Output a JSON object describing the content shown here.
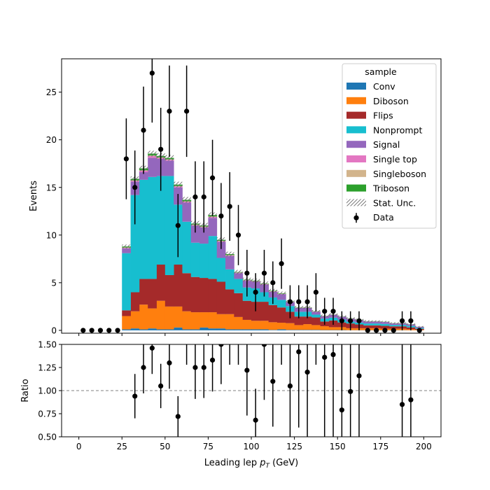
{
  "chart_data": {
    "type": "bar",
    "stacked": true,
    "bin_edges": [
      0,
      5,
      10,
      15,
      20,
      25,
      30,
      35,
      40,
      45,
      50,
      55,
      60,
      65,
      70,
      75,
      80,
      85,
      90,
      95,
      100,
      105,
      110,
      115,
      120,
      125,
      130,
      135,
      140,
      145,
      150,
      155,
      160,
      165,
      170,
      175,
      180,
      185,
      190,
      195,
      200
    ],
    "xlabel": "Leading lep",
    "xlabel_sub": "T",
    "xlabel_unit": " (GeV)",
    "xlabel_sym": "p",
    "ylabel": "Events",
    "ratio_ylabel": "Ratio",
    "xlim": [
      -10,
      210
    ],
    "ylim": [
      -0.3,
      28.5
    ],
    "ratio_ylim": [
      0.5,
      1.5
    ],
    "xticks": [
      0,
      25,
      50,
      75,
      100,
      125,
      150,
      175,
      200
    ],
    "yticks": [
      0,
      5,
      10,
      15,
      20,
      25
    ],
    "ratio_yticks": [
      "0.50",
      "0.75",
      "1.00",
      "1.25",
      "1.50"
    ],
    "legend": {
      "title": "sample",
      "placement": "top-right",
      "unc_label": "Stat. Unc.",
      "data_label": "Data"
    },
    "series": [
      {
        "name": "Conv",
        "color": "#1f77b4",
        "values": [
          0,
          0,
          0,
          0,
          0,
          0.1,
          0.2,
          0.1,
          0.2,
          0.1,
          0.1,
          0.3,
          0.1,
          0.1,
          0.3,
          0.2,
          0.2,
          0.1,
          0.1,
          0.1,
          0.1,
          0.1,
          0.05,
          0.1,
          0.05,
          0.05,
          0.05,
          0.05,
          0.03,
          0.03,
          0.03,
          0.02,
          0.02,
          0.02,
          0.02,
          0.02,
          0.02,
          0.02,
          0.01,
          0.01
        ]
      },
      {
        "name": "Diboson",
        "color": "#ff7f0e",
        "values": [
          0,
          0,
          0,
          0,
          0,
          1.4,
          1.8,
          2.6,
          2.1,
          3.0,
          2.4,
          2.2,
          1.9,
          1.8,
          1.6,
          1.7,
          1.5,
          1.6,
          1.3,
          1.0,
          0.9,
          0.9,
          0.8,
          0.7,
          0.7,
          0.5,
          0.6,
          0.5,
          0.4,
          0.3,
          0.3,
          0.2,
          0.2,
          0.2,
          0.2,
          0.15,
          0.15,
          0.15,
          0.1,
          0.05
        ]
      },
      {
        "name": "Flips",
        "color": "#a52a2a",
        "values": [
          0,
          0,
          0,
          0,
          0,
          0.6,
          2.0,
          2.7,
          3.1,
          3.8,
          3.3,
          4.4,
          4.0,
          3.7,
          3.6,
          3.5,
          3.4,
          2.6,
          2.5,
          2.0,
          2.0,
          2.0,
          1.8,
          1.6,
          1.2,
          0.9,
          0.8,
          0.8,
          0.5,
          0.7,
          0.5,
          0.5,
          0.4,
          0.3,
          0.3,
          0.3,
          0.25,
          0.25,
          0.2,
          0.1
        ]
      },
      {
        "name": "Nonprompt",
        "color": "#17becf",
        "values": [
          0,
          0,
          0,
          0,
          0,
          6.0,
          10.2,
          10.4,
          10.7,
          9.3,
          10.4,
          6.3,
          5.4,
          3.6,
          3.6,
          4.5,
          2.5,
          2.1,
          1.5,
          1.4,
          1.4,
          1.0,
          0.8,
          0.8,
          0.6,
          0.5,
          0.5,
          0.3,
          0.3,
          0.3,
          0.3,
          0.2,
          0.2,
          0.2,
          0.2,
          0.2,
          0.15,
          0.15,
          0.15,
          0.1
        ]
      },
      {
        "name": "Signal",
        "color": "#9467bd",
        "values": [
          0,
          0,
          0,
          0,
          0,
          0.5,
          1.4,
          0.8,
          2.0,
          1.8,
          1.6,
          1.8,
          2.0,
          1.8,
          1.7,
          1.9,
          1.7,
          1.4,
          0.6,
          0.7,
          0.7,
          0.8,
          0.6,
          0.6,
          0.4,
          0.4,
          0.4,
          0.3,
          0.25,
          0.3,
          0.3,
          0.3,
          0.25,
          0.2,
          0.2,
          0.2,
          0.15,
          0.15,
          0.15,
          0.1
        ]
      },
      {
        "name": "Single top",
        "color": "#e377c2",
        "values": [
          0,
          0,
          0,
          0,
          0,
          0.05,
          0.1,
          0.15,
          0.2,
          0.1,
          0.1,
          0.1,
          0.1,
          0.05,
          0.05,
          0.1,
          0.05,
          0.05,
          0.05,
          0.05,
          0.05,
          0.05,
          0.05,
          0.02,
          0.02,
          0.02,
          0.02,
          0.02,
          0.02,
          0.02,
          0.01,
          0.01,
          0.01,
          0.01,
          0.01,
          0.01,
          0.01,
          0.01,
          0.01,
          0.01
        ]
      },
      {
        "name": "Singleboson",
        "color": "#d2b48c",
        "values": [
          0,
          0,
          0,
          0,
          0,
          0.05,
          0.05,
          0.05,
          0.05,
          0.05,
          0.05,
          0.05,
          0.05,
          0.05,
          0.05,
          0.05,
          0.05,
          0.05,
          0.02,
          0.02,
          0.02,
          0.02,
          0.02,
          0.02,
          0.02,
          0.02,
          0.01,
          0.01,
          0.01,
          0.01,
          0.01,
          0.01,
          0.01,
          0.01,
          0.01,
          0.01,
          0.01,
          0.01,
          0.01,
          0.01
        ]
      },
      {
        "name": "Triboson",
        "color": "#2ca02c",
        "values": [
          0,
          0,
          0,
          0,
          0,
          0.1,
          0.15,
          0.2,
          0.2,
          0.15,
          0.15,
          0.15,
          0.15,
          0.1,
          0.1,
          0.15,
          0.1,
          0.1,
          0.05,
          0.05,
          0.05,
          0.05,
          0.05,
          0.05,
          0.03,
          0.03,
          0.03,
          0.03,
          0.02,
          0.02,
          0.02,
          0.02,
          0.02,
          0.02,
          0.02,
          0.02,
          0.02,
          0.02,
          0.02,
          0.01
        ]
      }
    ],
    "stat_unc": [
      0,
      0,
      0,
      0,
      0,
      0.2,
      0.25,
      0.28,
      0.3,
      0.3,
      0.3,
      0.3,
      0.3,
      0.28,
      0.28,
      0.28,
      0.25,
      0.25,
      0.22,
      0.2,
      0.2,
      0.2,
      0.18,
      0.18,
      0.15,
      0.15,
      0.15,
      0.12,
      0.12,
      0.12,
      0.1,
      0.1,
      0.1,
      0.1,
      0.08,
      0.08,
      0.08,
      0.08,
      0.08,
      0.06
    ],
    "data": [
      0,
      0,
      0,
      0,
      0,
      18,
      15,
      21,
      27,
      19,
      23,
      11,
      23,
      14,
      14,
      16,
      12,
      13,
      10,
      6,
      4,
      6,
      5,
      7,
      3,
      3,
      3,
      4,
      2,
      2,
      1,
      1,
      1,
      0,
      0,
      0,
      0,
      1,
      1,
      0
    ],
    "ratio": [
      null,
      null,
      null,
      null,
      null,
      null,
      0.94,
      1.25,
      1.46,
      1.05,
      1.3,
      0.72,
      null,
      1.25,
      1.25,
      1.33,
      1.5,
      null,
      null,
      1.22,
      0.68,
      1.5,
      1.1,
      null,
      1.05,
      1.42,
      1.2,
      null,
      1.36,
      1.39,
      0.79,
      0.99,
      1.16,
      null,
      null,
      null,
      null,
      0.85,
      0.9,
      null
    ],
    "ratio_err": [
      0,
      0,
      0,
      0,
      0,
      0,
      0.24,
      0.28,
      0.28,
      0.24,
      0.28,
      0.22,
      0,
      0.34,
      0.33,
      0.34,
      0.43,
      0,
      0,
      0.49,
      0.34,
      0.6,
      0.49,
      0,
      0.6,
      0.82,
      0.7,
      0,
      0.95,
      0.98,
      0.79,
      0.99,
      1.16,
      0,
      0,
      0,
      0,
      0.9,
      0.95,
      0
    ]
  }
}
